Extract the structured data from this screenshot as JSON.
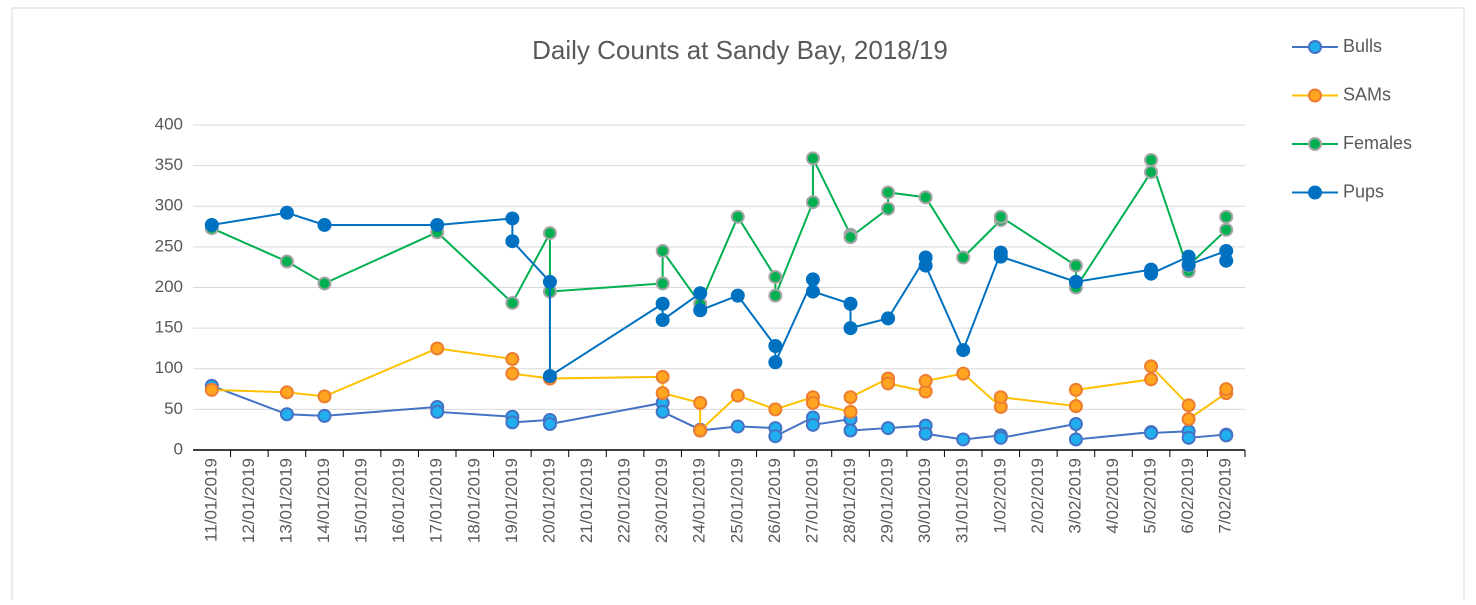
{
  "chart_data": {
    "type": "line",
    "title": "Daily Counts at Sandy Bay, 2018/19",
    "xticks": [
      "11/01/2019",
      "12/01/2019",
      "13/01/2019",
      "14/01/2019",
      "15/01/2019",
      "16/01/2019",
      "17/01/2019",
      "18/01/2019",
      "19/01/2019",
      "20/01/2019",
      "21/01/2019",
      "22/01/2019",
      "23/01/2019",
      "24/01/2019",
      "25/01/2019",
      "26/01/2019",
      "27/01/2019",
      "28/01/2019",
      "29/01/2019",
      "30/01/2019",
      "31/01/2019",
      "1/02/2019",
      "2/02/2019",
      "3/02/2019",
      "4/02/2019",
      "5/02/2019",
      "6/02/2019",
      "7/02/2019"
    ],
    "xlim": [
      "11/01/2019",
      "7/02/2019"
    ],
    "ylim": [
      0,
      400
    ],
    "yticks": [
      0,
      50,
      100,
      150,
      200,
      250,
      300,
      350,
      400
    ],
    "grid": true,
    "legend": "right",
    "series": [
      {
        "name": "Bulls",
        "color": "#4472c4",
        "marker_color": "#21b0ef",
        "marker_edge": "#4472c4",
        "x": [
          "11/01/2019",
          "13/01/2019",
          "14/01/2019",
          "17/01/2019",
          "17/01/2019",
          "19/01/2019",
          "19/01/2019",
          "20/01/2019",
          "20/01/2019",
          "23/01/2019",
          "23/01/2019",
          "24/01/2019",
          "24/01/2019",
          "25/01/2019",
          "26/01/2019",
          "26/01/2019",
          "27/01/2019",
          "27/01/2019",
          "28/01/2019",
          "28/01/2019",
          "29/01/2019",
          "30/01/2019",
          "30/01/2019",
          "31/01/2019",
          "1/02/2019",
          "1/02/2019",
          "3/02/2019",
          "3/02/2019",
          "5/02/2019",
          "5/02/2019",
          "6/02/2019",
          "6/02/2019",
          "7/02/2019",
          "7/02/2019"
        ],
        "values": [
          79,
          44,
          42,
          53,
          47,
          41,
          34,
          37,
          32,
          58,
          47,
          25,
          24,
          29,
          27,
          17,
          40,
          31,
          38,
          24,
          27,
          30,
          20,
          13,
          18,
          15,
          32,
          13,
          22,
          21,
          23,
          15,
          19,
          18
        ]
      },
      {
        "name": "SAMs",
        "color": "#ffc000",
        "marker_color": "#ffa51f",
        "marker_edge": "#ed7d31",
        "x": [
          "11/01/2019",
          "13/01/2019",
          "14/01/2019",
          "17/01/2019",
          "19/01/2019",
          "19/01/2019",
          "20/01/2019",
          "23/01/2019",
          "23/01/2019",
          "24/01/2019",
          "24/01/2019",
          "25/01/2019",
          "26/01/2019",
          "27/01/2019",
          "27/01/2019",
          "28/01/2019",
          "28/01/2019",
          "29/01/2019",
          "29/01/2019",
          "30/01/2019",
          "30/01/2019",
          "31/01/2019",
          "1/02/2019",
          "1/02/2019",
          "3/02/2019",
          "3/02/2019",
          "5/02/2019",
          "5/02/2019",
          "6/02/2019",
          "6/02/2019",
          "7/02/2019",
          "7/02/2019"
        ],
        "values": [
          74,
          71,
          66,
          125,
          112,
          94,
          88,
          90,
          70,
          58,
          24,
          67,
          50,
          65,
          58,
          47,
          65,
          88,
          82,
          72,
          85,
          94,
          53,
          65,
          54,
          74,
          87,
          103,
          55,
          38,
          70,
          75
        ]
      },
      {
        "name": "Females",
        "color": "#00b050",
        "marker_color": "#00b050",
        "marker_edge": "#a5a5a5",
        "x": [
          "11/01/2019",
          "13/01/2019",
          "14/01/2019",
          "17/01/2019",
          "19/01/2019",
          "20/01/2019",
          "20/01/2019",
          "23/01/2019",
          "23/01/2019",
          "24/01/2019",
          "25/01/2019",
          "26/01/2019",
          "26/01/2019",
          "27/01/2019",
          "27/01/2019",
          "28/01/2019",
          "28/01/2019",
          "29/01/2019",
          "29/01/2019",
          "30/01/2019",
          "31/01/2019",
          "1/02/2019",
          "1/02/2019",
          "3/02/2019",
          "3/02/2019",
          "5/02/2019",
          "5/02/2019",
          "6/02/2019",
          "6/02/2019",
          "7/02/2019",
          "7/02/2019"
        ],
        "values": [
          273,
          232,
          205,
          268,
          181,
          267,
          195,
          205,
          245,
          180,
          287,
          213,
          190,
          305,
          359,
          265,
          262,
          297,
          317,
          311,
          237,
          283,
          287,
          227,
          200,
          342,
          357,
          220,
          227,
          271,
          287
        ]
      },
      {
        "name": "Pups",
        "color": "#0070c0",
        "marker_color": "#0070c0",
        "marker_edge": "#0070c0",
        "x": [
          "11/01/2019",
          "13/01/2019",
          "14/01/2019",
          "17/01/2019",
          "19/01/2019",
          "19/01/2019",
          "20/01/2019",
          "20/01/2019",
          "23/01/2019",
          "23/01/2019",
          "24/01/2019",
          "24/01/2019",
          "25/01/2019",
          "26/01/2019",
          "26/01/2019",
          "27/01/2019",
          "27/01/2019",
          "28/01/2019",
          "28/01/2019",
          "29/01/2019",
          "30/01/2019",
          "30/01/2019",
          "31/01/2019",
          "1/02/2019",
          "1/02/2019",
          "3/02/2019",
          "5/02/2019",
          "5/02/2019",
          "6/02/2019",
          "6/02/2019",
          "7/02/2019",
          "7/02/2019"
        ],
        "values": [
          277,
          292,
          277,
          277,
          285,
          257,
          207,
          91,
          180,
          160,
          193,
          172,
          190,
          128,
          108,
          210,
          195,
          180,
          150,
          162,
          237,
          227,
          123,
          243,
          238,
          207,
          222,
          217,
          238,
          228,
          245,
          233
        ]
      }
    ]
  }
}
